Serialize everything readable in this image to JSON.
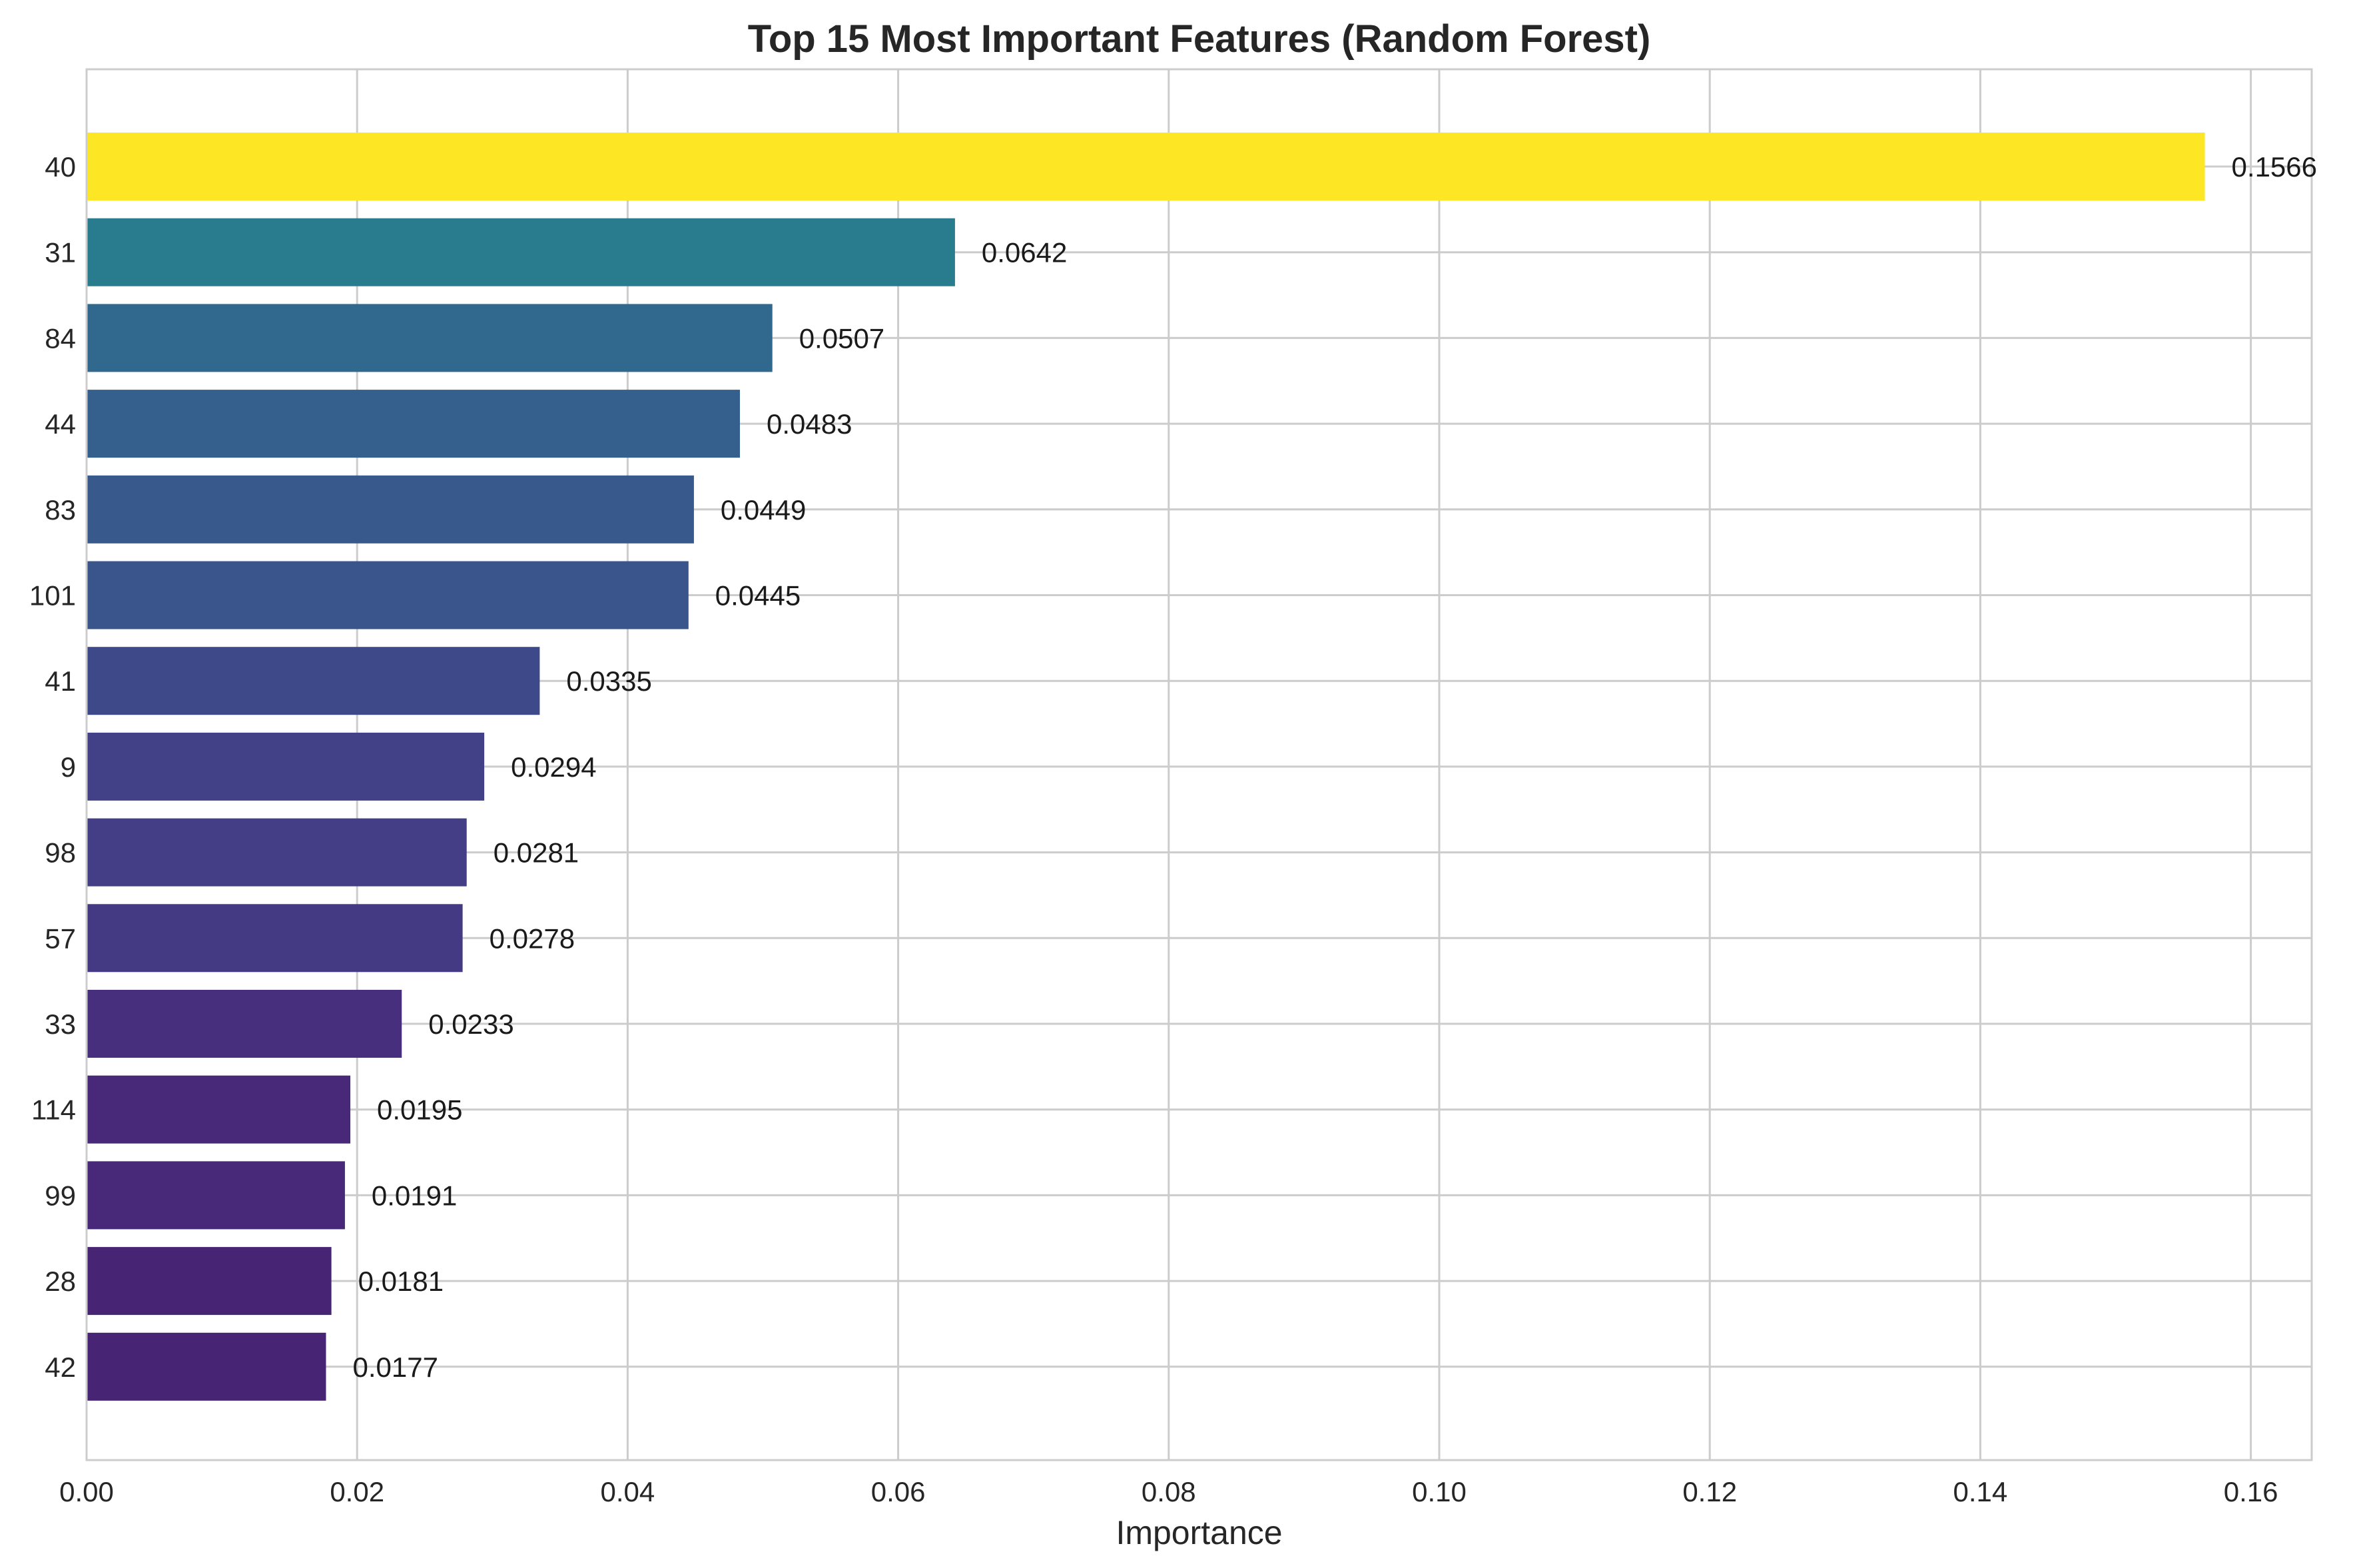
{
  "chart_data": {
    "type": "bar",
    "orientation": "horizontal",
    "title": "Top 15 Most Important Features (Random Forest)",
    "xlabel": "Importance",
    "ylabel": "",
    "xlim": [
      0,
      0.1645
    ],
    "x_ticks": [
      {
        "value": 0.0,
        "label": "0.00"
      },
      {
        "value": 0.02,
        "label": "0.02"
      },
      {
        "value": 0.04,
        "label": "0.04"
      },
      {
        "value": 0.06,
        "label": "0.06"
      },
      {
        "value": 0.08,
        "label": "0.08"
      },
      {
        "value": 0.1,
        "label": "0.10"
      },
      {
        "value": 0.12,
        "label": "0.12"
      },
      {
        "value": 0.14,
        "label": "0.14"
      },
      {
        "value": 0.16,
        "label": "0.16"
      }
    ],
    "grid": true,
    "legend": "none",
    "categories": [
      "40",
      "31",
      "84",
      "44",
      "83",
      "101",
      "41",
      "9",
      "98",
      "57",
      "33",
      "114",
      "99",
      "28",
      "42"
    ],
    "values": [
      0.1566,
      0.0642,
      0.0507,
      0.0483,
      0.0449,
      0.0445,
      0.0335,
      0.0294,
      0.0281,
      0.0278,
      0.0233,
      0.0195,
      0.0191,
      0.0181,
      0.0177
    ],
    "value_labels": [
      "0.1566",
      "0.0642",
      "0.0507",
      "0.0483",
      "0.0449",
      "0.0445",
      "0.0335",
      "0.0294",
      "0.0281",
      "0.0278",
      "0.0233",
      "0.0195",
      "0.0191",
      "0.0181",
      "0.0177"
    ],
    "colors": [
      "#fde725",
      "#287c8e",
      "#31688e",
      "#35608d",
      "#38598c",
      "#3a548c",
      "#3e4989",
      "#424086",
      "#433e85",
      "#443a83",
      "#472f7d",
      "#482878",
      "#482878",
      "#482475",
      "#482475"
    ]
  }
}
